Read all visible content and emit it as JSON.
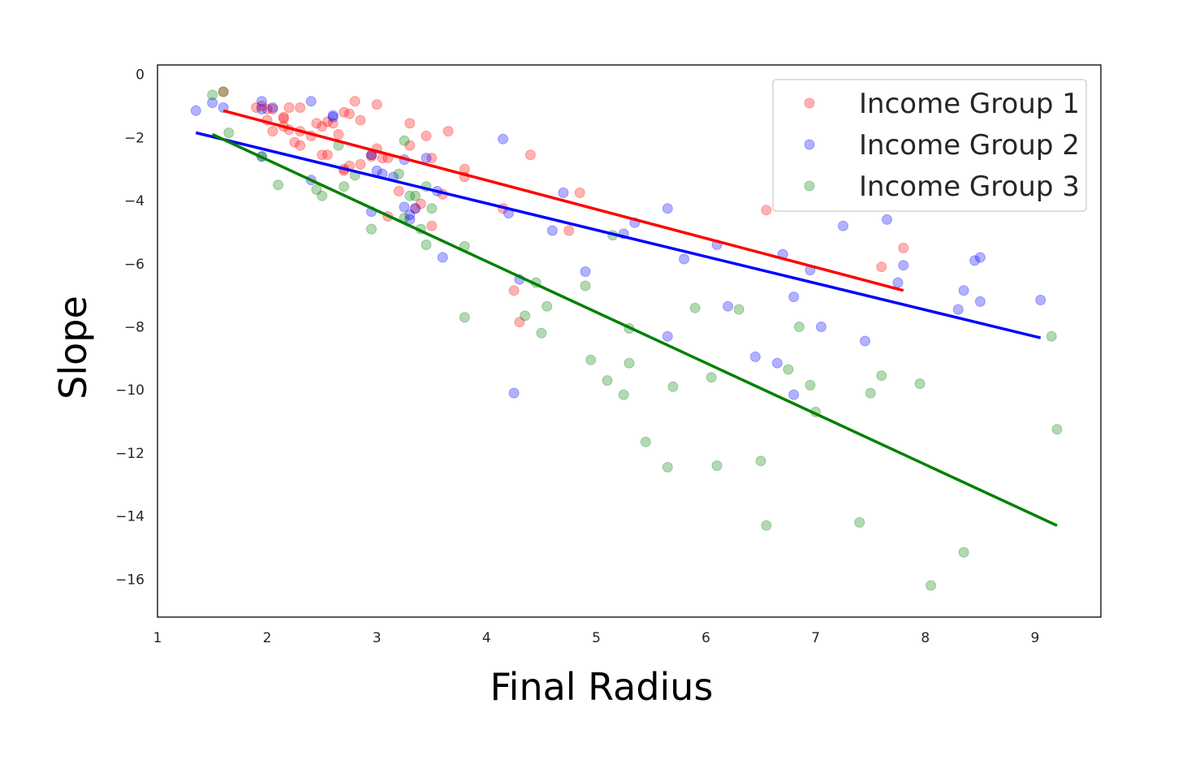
{
  "chart_data": {
    "type": "scatter",
    "xlabel": "Final Radius",
    "ylabel": "Slope",
    "xlim": [
      1.0,
      9.6
    ],
    "ylim": [
      -17.2,
      0.3
    ],
    "xticks": [
      1,
      2,
      3,
      4,
      5,
      6,
      7,
      8,
      9
    ],
    "yticks": [
      0,
      -2,
      -4,
      -6,
      -8,
      -10,
      -12,
      -14,
      -16
    ],
    "ytick_labels": [
      "0",
      "−2",
      "−4",
      "−6",
      "−8",
      "−10",
      "−12",
      "−14",
      "−16"
    ],
    "grid": false,
    "legend_position": "top-right",
    "series": [
      {
        "name": "Income Group 1",
        "color": "#ff0000",
        "points": [
          [
            1.6,
            -0.55
          ],
          [
            1.9,
            -1.05
          ],
          [
            1.95,
            -1.0
          ],
          [
            2.0,
            -1.1
          ],
          [
            2.05,
            -1.1
          ],
          [
            2.15,
            -1.35
          ],
          [
            2.15,
            -1.4
          ],
          [
            2.2,
            -1.05
          ],
          [
            2.3,
            -1.05
          ],
          [
            2.0,
            -1.45
          ],
          [
            2.05,
            -1.8
          ],
          [
            2.15,
            -1.65
          ],
          [
            2.2,
            -1.75
          ],
          [
            2.25,
            -2.15
          ],
          [
            2.3,
            -2.25
          ],
          [
            2.3,
            -1.8
          ],
          [
            2.4,
            -1.95
          ],
          [
            2.45,
            -1.55
          ],
          [
            2.5,
            -1.65
          ],
          [
            2.55,
            -1.5
          ],
          [
            2.6,
            -1.55
          ],
          [
            2.7,
            -1.2
          ],
          [
            2.75,
            -1.25
          ],
          [
            2.8,
            -0.85
          ],
          [
            2.85,
            -1.45
          ],
          [
            3.0,
            -0.95
          ],
          [
            2.65,
            -1.9
          ],
          [
            2.5,
            -2.55
          ],
          [
            2.55,
            -2.55
          ],
          [
            2.7,
            -3.0
          ],
          [
            2.75,
            -2.9
          ],
          [
            2.85,
            -2.85
          ],
          [
            2.95,
            -2.6
          ],
          [
            3.0,
            -2.35
          ],
          [
            3.05,
            -2.65
          ],
          [
            3.1,
            -2.65
          ],
          [
            3.3,
            -1.55
          ],
          [
            3.3,
            -2.25
          ],
          [
            3.45,
            -1.95
          ],
          [
            3.5,
            -2.65
          ],
          [
            3.65,
            -1.8
          ],
          [
            3.2,
            -3.7
          ],
          [
            3.4,
            -4.1
          ],
          [
            3.5,
            -4.8
          ],
          [
            3.1,
            -4.5
          ],
          [
            3.6,
            -3.8
          ],
          [
            3.8,
            -3.0
          ],
          [
            3.8,
            -3.25
          ],
          [
            4.15,
            -4.25
          ],
          [
            4.4,
            -2.55
          ],
          [
            4.85,
            -3.75
          ],
          [
            4.75,
            -4.95
          ],
          [
            4.25,
            -6.85
          ],
          [
            4.3,
            -7.85
          ],
          [
            6.55,
            -4.3
          ],
          [
            7.6,
            -6.1
          ],
          [
            7.8,
            -5.5
          ],
          [
            2.7,
            -3.05
          ],
          [
            2.95,
            -2.55
          ],
          [
            3.35,
            -4.25
          ]
        ],
        "fit": [
          [
            1.6,
            -1.15
          ],
          [
            7.8,
            -6.85
          ]
        ]
      },
      {
        "name": "Income Group 2",
        "color": "#0000ff",
        "points": [
          [
            1.35,
            -1.15
          ],
          [
            1.5,
            -0.9
          ],
          [
            1.6,
            -1.05
          ],
          [
            1.95,
            -0.85
          ],
          [
            1.95,
            -1.1
          ],
          [
            2.05,
            -1.05
          ],
          [
            2.4,
            -0.85
          ],
          [
            2.6,
            -1.3
          ],
          [
            2.6,
            -1.35
          ],
          [
            2.95,
            -2.55
          ],
          [
            2.95,
            -4.35
          ],
          [
            3.0,
            -3.05
          ],
          [
            3.05,
            -3.15
          ],
          [
            3.15,
            -3.25
          ],
          [
            3.25,
            -2.7
          ],
          [
            3.25,
            -4.2
          ],
          [
            3.3,
            -4.45
          ],
          [
            3.3,
            -4.6
          ],
          [
            3.35,
            -4.25
          ],
          [
            3.45,
            -2.65
          ],
          [
            3.55,
            -3.7
          ],
          [
            3.6,
            -5.8
          ],
          [
            2.4,
            -3.35
          ],
          [
            1.95,
            -2.6
          ],
          [
            4.15,
            -2.05
          ],
          [
            4.2,
            -4.4
          ],
          [
            4.3,
            -6.5
          ],
          [
            4.25,
            -10.1
          ],
          [
            4.7,
            -3.75
          ],
          [
            4.6,
            -4.95
          ],
          [
            4.9,
            -6.25
          ],
          [
            5.25,
            -5.05
          ],
          [
            5.35,
            -4.7
          ],
          [
            5.65,
            -4.25
          ],
          [
            5.8,
            -5.85
          ],
          [
            5.65,
            -8.3
          ],
          [
            6.1,
            -5.4
          ],
          [
            6.2,
            -7.35
          ],
          [
            6.45,
            -8.95
          ],
          [
            6.65,
            -9.15
          ],
          [
            6.7,
            -5.7
          ],
          [
            6.8,
            -7.05
          ],
          [
            6.8,
            -10.15
          ],
          [
            6.95,
            -6.2
          ],
          [
            7.05,
            -8.0
          ],
          [
            7.25,
            -4.8
          ],
          [
            7.45,
            -8.45
          ],
          [
            7.65,
            -4.6
          ],
          [
            7.75,
            -6.6
          ],
          [
            7.8,
            -6.05
          ],
          [
            8.3,
            -7.45
          ],
          [
            8.35,
            -6.85
          ],
          [
            8.45,
            -5.9
          ],
          [
            8.5,
            -5.8
          ],
          [
            8.5,
            -7.2
          ],
          [
            9.05,
            -7.15
          ]
        ],
        "fit": [
          [
            1.35,
            -1.85
          ],
          [
            9.05,
            -8.35
          ]
        ]
      },
      {
        "name": "Income Group 3",
        "color": "#008000",
        "points": [
          [
            1.5,
            -0.65
          ],
          [
            1.6,
            -0.55
          ],
          [
            1.65,
            -1.85
          ],
          [
            1.95,
            -2.6
          ],
          [
            2.1,
            -3.5
          ],
          [
            2.45,
            -3.65
          ],
          [
            2.5,
            -3.85
          ],
          [
            2.65,
            -2.25
          ],
          [
            2.7,
            -3.55
          ],
          [
            2.8,
            -3.2
          ],
          [
            2.95,
            -4.9
          ],
          [
            3.2,
            -3.15
          ],
          [
            3.25,
            -2.1
          ],
          [
            3.25,
            -4.55
          ],
          [
            3.3,
            -3.85
          ],
          [
            3.35,
            -3.85
          ],
          [
            3.4,
            -4.9
          ],
          [
            3.45,
            -5.4
          ],
          [
            3.5,
            -4.25
          ],
          [
            3.45,
            -3.55
          ],
          [
            3.8,
            -5.45
          ],
          [
            3.8,
            -7.7
          ],
          [
            4.35,
            -7.65
          ],
          [
            4.45,
            -6.6
          ],
          [
            4.5,
            -8.2
          ],
          [
            4.55,
            -7.35
          ],
          [
            4.9,
            -6.7
          ],
          [
            4.95,
            -9.05
          ],
          [
            5.1,
            -9.7
          ],
          [
            5.15,
            -5.1
          ],
          [
            5.25,
            -10.15
          ],
          [
            5.3,
            -8.05
          ],
          [
            5.3,
            -9.15
          ],
          [
            5.45,
            -11.65
          ],
          [
            5.65,
            -12.45
          ],
          [
            5.7,
            -9.9
          ],
          [
            5.9,
            -7.4
          ],
          [
            6.05,
            -9.6
          ],
          [
            6.1,
            -12.4
          ],
          [
            6.3,
            -7.45
          ],
          [
            6.5,
            -12.25
          ],
          [
            6.55,
            -14.3
          ],
          [
            6.75,
            -9.35
          ],
          [
            6.85,
            -8.0
          ],
          [
            6.95,
            -9.85
          ],
          [
            7.0,
            -10.7
          ],
          [
            7.4,
            -14.2
          ],
          [
            7.5,
            -10.1
          ],
          [
            7.6,
            -9.55
          ],
          [
            7.95,
            -9.8
          ],
          [
            8.05,
            -16.2
          ],
          [
            8.35,
            -15.15
          ],
          [
            9.15,
            -8.3
          ],
          [
            9.2,
            -11.25
          ]
        ],
        "fit": [
          [
            1.5,
            -1.9
          ],
          [
            9.2,
            -14.3
          ]
        ]
      }
    ]
  }
}
